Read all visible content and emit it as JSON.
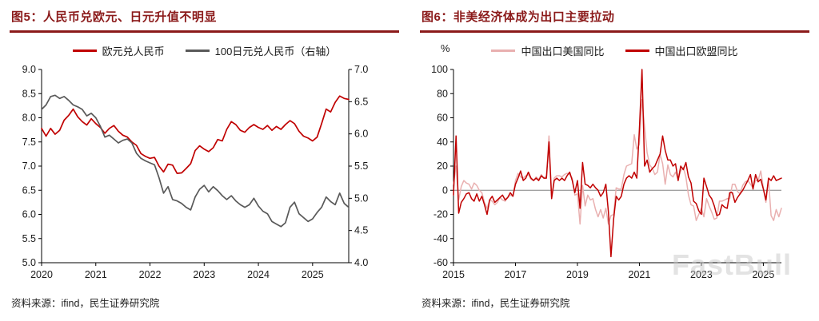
{
  "panels": [
    {
      "id": "fig5",
      "title_prefix": "图5：",
      "title": "人民币兑欧元、日元升值不明显",
      "accent": "#8B1A1A",
      "legend": [
        {
          "label": "欧元兑人民币",
          "color": "#C00000"
        },
        {
          "label": "100日元兑人民币（右轴）",
          "color": "#595959"
        }
      ],
      "source": "资料来源：ifind，民生证券研究院"
    },
    {
      "id": "fig6",
      "title_prefix": "图6：",
      "title": "非美经济体成为出口主要拉动",
      "accent": "#8B1A1A",
      "ylabel": "%",
      "legend": [
        {
          "label": "中国出口美国同比",
          "color": "#E9B0B0"
        },
        {
          "label": "中国出口欧盟同比",
          "color": "#C00000"
        }
      ],
      "source": "资料来源：ifind，民生证券研究院",
      "watermark": "FastBull"
    }
  ],
  "chart_data": [
    {
      "type": "line",
      "title": "人民币兑欧元、日元升值不明显",
      "x_start_year": 2020,
      "x_ticks": [
        2020,
        2021,
        2022,
        2023,
        2024,
        2025
      ],
      "left_axis": {
        "min": 5.0,
        "max": 9.0,
        "step": 0.5,
        "ticks": [
          "9.0",
          "8.5",
          "8.0",
          "7.5",
          "7.0",
          "6.5",
          "6.0",
          "5.5",
          "5.0"
        ]
      },
      "right_axis": {
        "min": 4.0,
        "max": 7.0,
        "step": 0.5,
        "ticks": [
          "7.0",
          "6.5",
          "6.0",
          "5.5",
          "5.0",
          "4.5",
          "4.0"
        ]
      },
      "grid": false,
      "legend_position": "top",
      "series": [
        {
          "name": "欧元兑人民币",
          "axis": "left",
          "color": "#C00000",
          "values": [
            7.78,
            7.62,
            7.78,
            7.66,
            7.74,
            7.95,
            8.05,
            8.18,
            8.02,
            7.92,
            7.85,
            7.98,
            7.88,
            7.8,
            7.68,
            7.78,
            7.84,
            7.72,
            7.64,
            7.6,
            7.5,
            7.43,
            7.26,
            7.2,
            7.16,
            7.18,
            7.0,
            6.88,
            7.04,
            7.02,
            6.85,
            6.86,
            6.95,
            7.05,
            7.32,
            7.42,
            7.35,
            7.3,
            7.38,
            7.55,
            7.52,
            7.76,
            7.92,
            7.86,
            7.74,
            7.7,
            7.8,
            7.86,
            7.8,
            7.76,
            7.84,
            7.74,
            7.82,
            7.76,
            7.86,
            7.94,
            7.88,
            7.72,
            7.62,
            7.58,
            7.52,
            7.6,
            7.88,
            8.18,
            8.12,
            8.32,
            8.45,
            8.4,
            8.38
          ]
        },
        {
          "name": "100日元兑人民币（右轴）",
          "axis": "right",
          "color": "#595959",
          "values": [
            6.38,
            6.45,
            6.58,
            6.6,
            6.55,
            6.58,
            6.52,
            6.45,
            6.42,
            6.38,
            6.28,
            6.32,
            6.25,
            6.12,
            5.95,
            5.98,
            5.92,
            5.86,
            5.9,
            5.92,
            5.86,
            5.7,
            5.62,
            5.58,
            5.55,
            5.52,
            5.32,
            5.08,
            5.18,
            4.98,
            4.96,
            4.92,
            4.86,
            4.82,
            5.02,
            5.14,
            5.2,
            5.1,
            5.18,
            5.12,
            5.04,
            4.98,
            5.04,
            4.96,
            4.9,
            4.86,
            4.9,
            5.0,
            4.88,
            4.8,
            4.76,
            4.64,
            4.6,
            4.56,
            4.62,
            4.86,
            4.94,
            4.76,
            4.7,
            4.64,
            4.68,
            4.78,
            4.86,
            5.02,
            4.95,
            4.9,
            5.08,
            4.92,
            4.86
          ]
        }
      ]
    },
    {
      "type": "line",
      "title": "非美经济体成为出口主要拉动",
      "ylabel": "%",
      "x_start_year": 2015,
      "x_ticks": [
        2015,
        2017,
        2019,
        2021,
        2023,
        2025
      ],
      "y_axis": {
        "min": -60,
        "max": 100,
        "step": 20,
        "ticks": [
          "100",
          "80",
          "60",
          "40",
          "20",
          "0",
          "-20",
          "-40",
          "-60"
        ]
      },
      "zero_line": true,
      "grid": false,
      "legend_position": "top",
      "series": [
        {
          "name": "中国出口美国同比",
          "color": "#E9B0B0",
          "values": [
            5,
            20,
            -8,
            3,
            8,
            6,
            5,
            1,
            6,
            4,
            0,
            -2,
            -10,
            -15,
            -8,
            -9,
            -12,
            -10,
            -6,
            -8,
            -9,
            -6,
            -4,
            -5,
            8,
            14,
            11,
            10,
            12,
            13,
            9,
            8,
            11,
            9,
            13,
            10,
            12,
            45,
            -6,
            10,
            12,
            12,
            11,
            13,
            14,
            13,
            10,
            -4,
            -3,
            -28,
            4,
            -13,
            -4,
            -8,
            -7,
            -16,
            -22,
            -16,
            -23,
            -15,
            -28,
            -21,
            -20,
            2,
            1,
            1,
            13,
            20,
            21,
            22,
            46,
            34,
            38,
            75,
            53,
            31,
            21,
            18,
            13,
            15,
            30,
            22,
            5,
            21,
            13,
            11,
            15,
            9,
            16,
            19,
            11,
            -4,
            -12,
            -13,
            -25,
            -20,
            -15,
            -22,
            -7,
            -13,
            -18,
            -24,
            -23,
            -9,
            -9,
            -8,
            -7,
            -7,
            5,
            5,
            -1,
            -3,
            4,
            7,
            8,
            5,
            2,
            8,
            8,
            16,
            2,
            -10,
            9,
            -21,
            -25,
            -16,
            -22,
            -15
          ]
        },
        {
          "name": "中国出口欧盟同比",
          "color": "#C00000",
          "values": [
            -4,
            45,
            -19,
            -10,
            -7,
            -3,
            -2,
            -7,
            -9,
            -3,
            -9,
            -5,
            -12,
            -20,
            -8,
            -5,
            -10,
            -8,
            -6,
            -4,
            -8,
            -6,
            -2,
            -5,
            5,
            10,
            16,
            8,
            10,
            15,
            10,
            8,
            10,
            8,
            12,
            10,
            10,
            40,
            -7,
            8,
            10,
            8,
            10,
            8,
            12,
            15,
            8,
            -2,
            8,
            -15,
            23,
            5,
            4,
            2,
            5,
            2,
            0,
            -5,
            -2,
            5,
            -18,
            -55,
            -24,
            -5,
            -8,
            -5,
            5,
            10,
            12,
            10,
            15,
            10,
            50,
            100,
            20,
            25,
            15,
            18,
            20,
            25,
            30,
            45,
            33,
            25,
            25,
            20,
            22,
            8,
            20,
            17,
            23,
            11,
            6,
            -9,
            -11,
            -17,
            -20,
            10,
            3,
            -4,
            -7,
            -13,
            -21,
            -20,
            -12,
            -14,
            -15,
            -2,
            -2,
            -10,
            -6,
            -3,
            0,
            4,
            8,
            13,
            1,
            13,
            7,
            9,
            1,
            -8,
            10,
            8,
            12,
            8,
            9,
            10
          ]
        }
      ]
    }
  ]
}
